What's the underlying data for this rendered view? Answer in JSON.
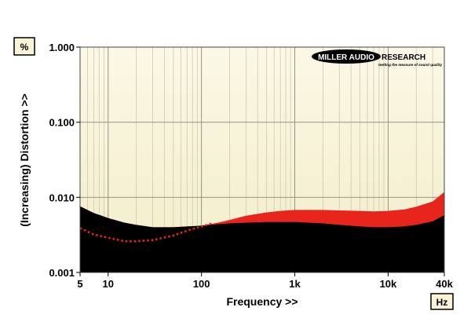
{
  "chart_data": {
    "type": "area",
    "xlabel": "Frequency >>",
    "ylabel": "(Increasing) Distortion >>",
    "x_unit": "Hz",
    "y_unit": "%",
    "x_scale": "log",
    "y_scale": "log",
    "xlim": [
      5,
      40000
    ],
    "ylim": [
      0.001,
      1.0
    ],
    "x_ticks": [
      {
        "value": 5,
        "label": "5"
      },
      {
        "value": 10,
        "label": "10"
      },
      {
        "value": 100,
        "label": "100"
      },
      {
        "value": 1000,
        "label": "1k"
      },
      {
        "value": 10000,
        "label": "10k"
      },
      {
        "value": 40000,
        "label": "40k"
      }
    ],
    "y_ticks": [
      {
        "value": 0.001,
        "label": "0.001"
      },
      {
        "value": 0.01,
        "label": "0.010"
      },
      {
        "value": 0.1,
        "label": "0.100"
      },
      {
        "value": 1.0,
        "label": "1.000"
      }
    ],
    "grid": true,
    "logo": {
      "name": "MILLER AUDIO",
      "suffix": "RESEARCH",
      "tagline": "Getting the measure of sound quality"
    },
    "series": [
      {
        "role": "upper-band",
        "color": "#e8251c",
        "x": [
          5,
          7,
          10,
          15,
          20,
          30,
          50,
          70,
          100,
          150,
          200,
          300,
          500,
          700,
          1000,
          2000,
          3000,
          5000,
          7000,
          10000,
          15000,
          20000,
          30000,
          40000
        ],
        "values": [
          0.0076,
          0.0062,
          0.0053,
          0.0046,
          0.0043,
          0.004,
          0.004,
          0.0041,
          0.0042,
          0.0046,
          0.005,
          0.0057,
          0.0063,
          0.0066,
          0.0068,
          0.0068,
          0.0067,
          0.0066,
          0.0065,
          0.0066,
          0.0069,
          0.0075,
          0.0088,
          0.0118
        ]
      },
      {
        "role": "lower-band",
        "color": "#000000",
        "x": [
          5,
          7,
          10,
          15,
          20,
          30,
          50,
          70,
          100,
          150,
          200,
          300,
          500,
          700,
          1000,
          2000,
          3000,
          5000,
          7000,
          10000,
          15000,
          20000,
          30000,
          40000
        ],
        "values": [
          0.0076,
          0.0062,
          0.0053,
          0.0046,
          0.0043,
          0.004,
          0.004,
          0.0041,
          0.0042,
          0.0044,
          0.0045,
          0.0046,
          0.0047,
          0.0047,
          0.0047,
          0.0045,
          0.0043,
          0.0041,
          0.004,
          0.004,
          0.0041,
          0.0043,
          0.0048,
          0.0058
        ]
      },
      {
        "role": "dotted-trace",
        "color": "#e8251c",
        "x": [
          5,
          7,
          10,
          15,
          20,
          30,
          50,
          70,
          100,
          130
        ],
        "values": [
          0.0039,
          0.0032,
          0.0029,
          0.0026,
          0.0026,
          0.0027,
          0.0031,
          0.0036,
          0.0041,
          0.0045
        ]
      }
    ]
  }
}
